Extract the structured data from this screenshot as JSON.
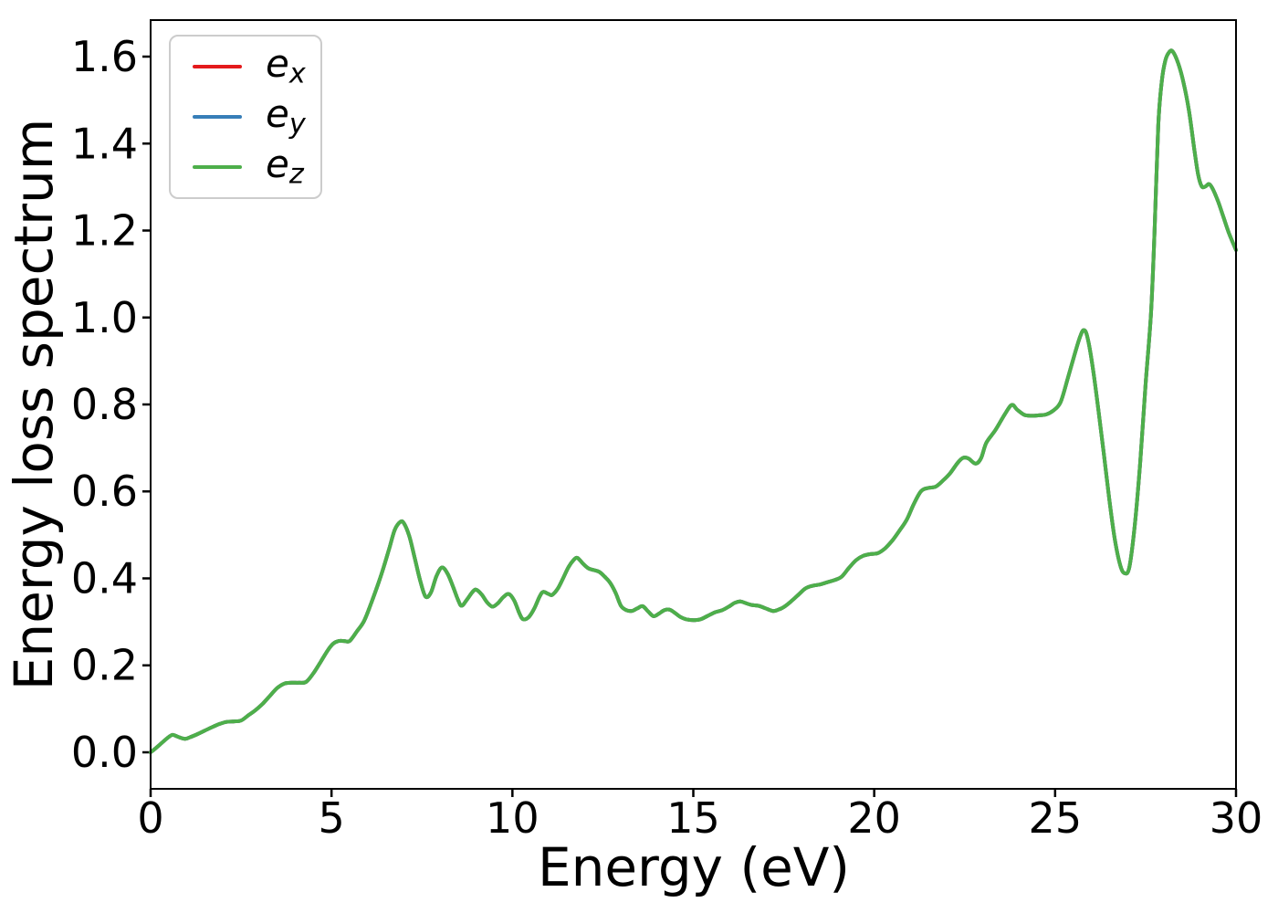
{
  "figure": {
    "background": "#ffffff",
    "spine_color": "#000000",
    "tick_color": "#000000"
  },
  "legend": {
    "position": "upper left",
    "entries": [
      {
        "base": "e",
        "sub": "x",
        "color": "#e41a1c"
      },
      {
        "base": "e",
        "sub": "y",
        "color": "#377eb8"
      },
      {
        "base": "e",
        "sub": "z",
        "color": "#4daf4a"
      }
    ]
  },
  "chart_data": {
    "type": "line",
    "title": "",
    "xlabel": "Energy (eV)",
    "ylabel": "Energy loss spectrum",
    "xlim": [
      0,
      30
    ],
    "ylim": [
      -0.084,
      1.684
    ],
    "x_ticks": [
      0,
      5,
      10,
      15,
      20,
      25,
      30
    ],
    "y_ticks": [
      0.0,
      0.2,
      0.4,
      0.6,
      0.8,
      1.0,
      1.2,
      1.4,
      1.6
    ],
    "grid": false,
    "legend_position": "upper left",
    "note": "Series e_x, e_y and e_z overlap exactly; only the last-drawn green e_z curve is visible.",
    "x": [
      0,
      0.15,
      0.3,
      0.45,
      0.6,
      0.75,
      0.95,
      1.1,
      1.3,
      1.5,
      1.7,
      1.9,
      2.1,
      2.3,
      2.5,
      2.7,
      2.9,
      3.1,
      3.3,
      3.5,
      3.7,
      3.9,
      4.1,
      4.3,
      4.5,
      4.7,
      4.9,
      5.05,
      5.2,
      5.35,
      5.5,
      5.7,
      5.9,
      6.1,
      6.3,
      6.45,
      6.6,
      6.75,
      6.9,
      7,
      7.15,
      7.3,
      7.45,
      7.6,
      7.75,
      7.9,
      8.05,
      8.2,
      8.35,
      8.5,
      8.6,
      8.75,
      8.9,
      9,
      9.15,
      9.3,
      9.45,
      9.6,
      9.75,
      9.9,
      10.05,
      10.2,
      10.3,
      10.45,
      10.6,
      10.75,
      10.85,
      11,
      11.1,
      11.25,
      11.4,
      11.55,
      11.7,
      11.8,
      11.95,
      12.1,
      12.25,
      12.4,
      12.55,
      12.7,
      12.85,
      13,
      13.15,
      13.3,
      13.45,
      13.6,
      13.75,
      13.9,
      14.05,
      14.2,
      14.35,
      14.5,
      14.65,
      14.8,
      15,
      15.2,
      15.4,
      15.6,
      15.8,
      16,
      16.15,
      16.3,
      16.45,
      16.6,
      16.8,
      17,
      17.2,
      17.35,
      17.5,
      17.7,
      17.9,
      18.1,
      18.3,
      18.5,
      18.7,
      18.9,
      19.1,
      19.3,
      19.5,
      19.7,
      19.9,
      20.1,
      20.3,
      20.5,
      20.7,
      20.9,
      21.1,
      21.3,
      21.5,
      21.7,
      21.9,
      22.1,
      22.3,
      22.45,
      22.6,
      22.8,
      22.95,
      23.1,
      23.35,
      23.6,
      23.8,
      23.95,
      24.15,
      24.35,
      24.55,
      24.75,
      24.95,
      25.15,
      25.35,
      25.55,
      25.7,
      25.8,
      25.9,
      26.05,
      26.2,
      26.35,
      26.5,
      26.65,
      26.8,
      26.92,
      27.05,
      27.2,
      27.35,
      27.5,
      27.65,
      27.75,
      27.85,
      27.95,
      28.05,
      28.15,
      28.25,
      28.4,
      28.55,
      28.7,
      28.85,
      28.95,
      29.05,
      29.15,
      29.25,
      29.35,
      29.5,
      29.65,
      29.8,
      30
    ],
    "series": [
      {
        "name": "e_x",
        "color": "#e41a1c",
        "values": [
          0,
          0.01,
          0.021,
          0.032,
          0.04,
          0.036,
          0.031,
          0.035,
          0.042,
          0.05,
          0.058,
          0.065,
          0.07,
          0.071,
          0.073,
          0.085,
          0.097,
          0.112,
          0.13,
          0.148,
          0.158,
          0.16,
          0.16,
          0.162,
          0.182,
          0.208,
          0.235,
          0.25,
          0.256,
          0.256,
          0.256,
          0.278,
          0.302,
          0.344,
          0.39,
          0.428,
          0.47,
          0.512,
          0.53,
          0.527,
          0.497,
          0.447,
          0.395,
          0.358,
          0.368,
          0.405,
          0.425,
          0.412,
          0.383,
          0.35,
          0.337,
          0.352,
          0.369,
          0.374,
          0.363,
          0.345,
          0.335,
          0.343,
          0.357,
          0.364,
          0.349,
          0.318,
          0.306,
          0.311,
          0.33,
          0.358,
          0.369,
          0.364,
          0.362,
          0.376,
          0.4,
          0.426,
          0.443,
          0.447,
          0.434,
          0.423,
          0.419,
          0.415,
          0.404,
          0.39,
          0.367,
          0.337,
          0.327,
          0.325,
          0.331,
          0.336,
          0.324,
          0.313,
          0.319,
          0.327,
          0.328,
          0.32,
          0.311,
          0.306,
          0.304,
          0.306,
          0.314,
          0.322,
          0.327,
          0.336,
          0.344,
          0.347,
          0.343,
          0.339,
          0.337,
          0.331,
          0.325,
          0.328,
          0.334,
          0.347,
          0.362,
          0.377,
          0.383,
          0.386,
          0.391,
          0.396,
          0.404,
          0.424,
          0.442,
          0.452,
          0.456,
          0.458,
          0.469,
          0.487,
          0.51,
          0.535,
          0.572,
          0.601,
          0.608,
          0.611,
          0.625,
          0.642,
          0.665,
          0.677,
          0.676,
          0.664,
          0.676,
          0.712,
          0.741,
          0.776,
          0.799,
          0.788,
          0.776,
          0.774,
          0.775,
          0.777,
          0.786,
          0.805,
          0.86,
          0.918,
          0.958,
          0.971,
          0.952,
          0.88,
          0.785,
          0.685,
          0.58,
          0.49,
          0.43,
          0.412,
          0.425,
          0.52,
          0.665,
          0.845,
          1.01,
          1.2,
          1.44,
          1.545,
          1.592,
          1.61,
          1.612,
          1.585,
          1.54,
          1.475,
          1.385,
          1.33,
          1.302,
          1.301,
          1.307,
          1.297,
          1.268,
          1.232,
          1.195,
          1.155
        ]
      },
      {
        "name": "e_y",
        "color": "#377eb8",
        "values": [
          0,
          0.01,
          0.021,
          0.032,
          0.04,
          0.036,
          0.031,
          0.035,
          0.042,
          0.05,
          0.058,
          0.065,
          0.07,
          0.071,
          0.073,
          0.085,
          0.097,
          0.112,
          0.13,
          0.148,
          0.158,
          0.16,
          0.16,
          0.162,
          0.182,
          0.208,
          0.235,
          0.25,
          0.256,
          0.256,
          0.256,
          0.278,
          0.302,
          0.344,
          0.39,
          0.428,
          0.47,
          0.512,
          0.53,
          0.527,
          0.497,
          0.447,
          0.395,
          0.358,
          0.368,
          0.405,
          0.425,
          0.412,
          0.383,
          0.35,
          0.337,
          0.352,
          0.369,
          0.374,
          0.363,
          0.345,
          0.335,
          0.343,
          0.357,
          0.364,
          0.349,
          0.318,
          0.306,
          0.311,
          0.33,
          0.358,
          0.369,
          0.364,
          0.362,
          0.376,
          0.4,
          0.426,
          0.443,
          0.447,
          0.434,
          0.423,
          0.419,
          0.415,
          0.404,
          0.39,
          0.367,
          0.337,
          0.327,
          0.325,
          0.331,
          0.336,
          0.324,
          0.313,
          0.319,
          0.327,
          0.328,
          0.32,
          0.311,
          0.306,
          0.304,
          0.306,
          0.314,
          0.322,
          0.327,
          0.336,
          0.344,
          0.347,
          0.343,
          0.339,
          0.337,
          0.331,
          0.325,
          0.328,
          0.334,
          0.347,
          0.362,
          0.377,
          0.383,
          0.386,
          0.391,
          0.396,
          0.404,
          0.424,
          0.442,
          0.452,
          0.456,
          0.458,
          0.469,
          0.487,
          0.51,
          0.535,
          0.572,
          0.601,
          0.608,
          0.611,
          0.625,
          0.642,
          0.665,
          0.677,
          0.676,
          0.664,
          0.676,
          0.712,
          0.741,
          0.776,
          0.799,
          0.788,
          0.776,
          0.774,
          0.775,
          0.777,
          0.786,
          0.805,
          0.86,
          0.918,
          0.958,
          0.971,
          0.952,
          0.88,
          0.785,
          0.685,
          0.58,
          0.49,
          0.43,
          0.412,
          0.425,
          0.52,
          0.665,
          0.845,
          1.01,
          1.2,
          1.44,
          1.545,
          1.592,
          1.61,
          1.612,
          1.585,
          1.54,
          1.475,
          1.385,
          1.33,
          1.302,
          1.301,
          1.307,
          1.297,
          1.268,
          1.232,
          1.195,
          1.155
        ]
      },
      {
        "name": "e_z",
        "color": "#4daf4a",
        "values": [
          0,
          0.01,
          0.021,
          0.032,
          0.04,
          0.036,
          0.031,
          0.035,
          0.042,
          0.05,
          0.058,
          0.065,
          0.07,
          0.071,
          0.073,
          0.085,
          0.097,
          0.112,
          0.13,
          0.148,
          0.158,
          0.16,
          0.16,
          0.162,
          0.182,
          0.208,
          0.235,
          0.25,
          0.256,
          0.256,
          0.256,
          0.278,
          0.302,
          0.344,
          0.39,
          0.428,
          0.47,
          0.512,
          0.53,
          0.527,
          0.497,
          0.447,
          0.395,
          0.358,
          0.368,
          0.405,
          0.425,
          0.412,
          0.383,
          0.35,
          0.337,
          0.352,
          0.369,
          0.374,
          0.363,
          0.345,
          0.335,
          0.343,
          0.357,
          0.364,
          0.349,
          0.318,
          0.306,
          0.311,
          0.33,
          0.358,
          0.369,
          0.364,
          0.362,
          0.376,
          0.4,
          0.426,
          0.443,
          0.447,
          0.434,
          0.423,
          0.419,
          0.415,
          0.404,
          0.39,
          0.367,
          0.337,
          0.327,
          0.325,
          0.331,
          0.336,
          0.324,
          0.313,
          0.319,
          0.327,
          0.328,
          0.32,
          0.311,
          0.306,
          0.304,
          0.306,
          0.314,
          0.322,
          0.327,
          0.336,
          0.344,
          0.347,
          0.343,
          0.339,
          0.337,
          0.331,
          0.325,
          0.328,
          0.334,
          0.347,
          0.362,
          0.377,
          0.383,
          0.386,
          0.391,
          0.396,
          0.404,
          0.424,
          0.442,
          0.452,
          0.456,
          0.458,
          0.469,
          0.487,
          0.51,
          0.535,
          0.572,
          0.601,
          0.608,
          0.611,
          0.625,
          0.642,
          0.665,
          0.677,
          0.676,
          0.664,
          0.676,
          0.712,
          0.741,
          0.776,
          0.799,
          0.788,
          0.776,
          0.774,
          0.775,
          0.777,
          0.786,
          0.805,
          0.86,
          0.918,
          0.958,
          0.971,
          0.952,
          0.88,
          0.785,
          0.685,
          0.58,
          0.49,
          0.43,
          0.412,
          0.425,
          0.52,
          0.665,
          0.845,
          1.01,
          1.2,
          1.44,
          1.545,
          1.592,
          1.61,
          1.612,
          1.585,
          1.54,
          1.475,
          1.385,
          1.33,
          1.302,
          1.301,
          1.307,
          1.297,
          1.268,
          1.232,
          1.195,
          1.155
        ]
      }
    ]
  }
}
